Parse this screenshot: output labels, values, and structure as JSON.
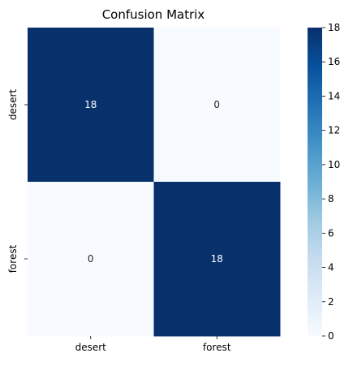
{
  "chart_data": {
    "type": "heatmap",
    "title": "Confusion Matrix",
    "x_categories": [
      "desert",
      "forest"
    ],
    "y_categories": [
      "desert",
      "forest"
    ],
    "values": [
      [
        18,
        0
      ],
      [
        0,
        18
      ]
    ],
    "colormap": "Blues",
    "colorbar": {
      "min": 0,
      "max": 18,
      "ticks": [
        0,
        2,
        4,
        6,
        8,
        10,
        12,
        14,
        16,
        18
      ]
    },
    "annotations": true,
    "grid": false,
    "legend_placement": "right"
  },
  "colors": {
    "low": "#f7fbff",
    "high": "#08306b",
    "annotation_on_dark": "#ffffff",
    "annotation_on_light": "#262626"
  }
}
